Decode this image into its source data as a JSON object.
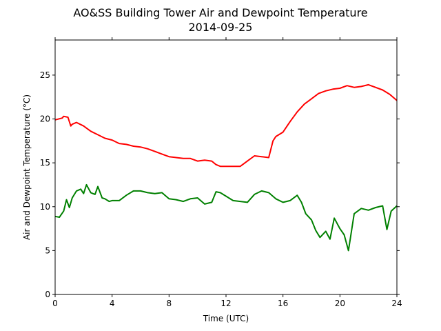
{
  "chart_data": {
    "type": "line",
    "title": "AO&SS Building Tower Air and Dewpoint Temperature",
    "subtitle": "2014-09-25",
    "xlabel": "Time (UTC)",
    "ylabel": "Air and Dewpoint Temperature (°C)",
    "xlim": [
      0,
      24
    ],
    "ylim": [
      0,
      29
    ],
    "xticks": [
      0,
      4,
      8,
      12,
      16,
      20,
      24
    ],
    "yticks": [
      0,
      5,
      10,
      15,
      20,
      25
    ],
    "grid": false,
    "legend": "none",
    "series": [
      {
        "color": "#ff0000",
        "x": [
          0,
          0.5,
          0.6,
          0.9,
          1.1,
          1.2,
          1.5,
          2.0,
          2.5,
          3.0,
          3.5,
          4.0,
          4.5,
          5.0,
          5.5,
          6.0,
          6.5,
          7.0,
          7.5,
          8.0,
          8.5,
          9.0,
          9.5,
          10.0,
          10.5,
          11.0,
          11.3,
          11.6,
          12.0,
          12.5,
          13.0,
          13.5,
          14.0,
          14.5,
          15.0,
          15.3,
          15.5,
          16.0,
          16.5,
          17.0,
          17.5,
          18.0,
          18.5,
          19.0,
          19.5,
          20.0,
          20.5,
          21.0,
          21.5,
          22.0,
          22.5,
          23.0,
          23.5,
          24.0
        ],
        "y": [
          19.9,
          20.1,
          20.3,
          20.2,
          19.2,
          19.4,
          19.6,
          19.2,
          18.6,
          18.2,
          17.8,
          17.6,
          17.2,
          17.1,
          16.9,
          16.8,
          16.6,
          16.3,
          16.0,
          15.7,
          15.6,
          15.5,
          15.5,
          15.2,
          15.3,
          15.2,
          14.8,
          14.6,
          14.6,
          14.6,
          14.6,
          15.2,
          15.8,
          15.7,
          15.6,
          17.5,
          18.0,
          18.5,
          19.7,
          20.8,
          21.7,
          22.3,
          22.9,
          23.2,
          23.4,
          23.5,
          23.8,
          23.6,
          23.7,
          23.9,
          23.6,
          23.3,
          22.8,
          22.1
        ]
      },
      {
        "color": "#008000",
        "x": [
          0,
          0.3,
          0.6,
          0.8,
          1.0,
          1.2,
          1.5,
          1.8,
          2.0,
          2.2,
          2.5,
          2.8,
          3.0,
          3.3,
          3.5,
          3.8,
          4.0,
          4.5,
          5.0,
          5.5,
          6.0,
          6.5,
          7.0,
          7.5,
          8.0,
          8.5,
          9.0,
          9.5,
          10.0,
          10.5,
          11.0,
          11.3,
          11.6,
          12.0,
          12.5,
          13.0,
          13.5,
          14.0,
          14.5,
          15.0,
          15.5,
          16.0,
          16.5,
          17.0,
          17.3,
          17.6,
          18.0,
          18.3,
          18.6,
          19.0,
          19.3,
          19.6,
          20.0,
          20.3,
          20.6,
          21.0,
          21.5,
          22.0,
          22.5,
          23.0,
          23.3,
          23.6,
          24.0
        ],
        "y": [
          8.9,
          8.8,
          9.5,
          10.8,
          9.9,
          11.0,
          11.8,
          12.0,
          11.5,
          12.5,
          11.6,
          11.4,
          12.3,
          11.0,
          10.9,
          10.6,
          10.7,
          10.7,
          11.3,
          11.8,
          11.8,
          11.6,
          11.5,
          11.6,
          10.9,
          10.8,
          10.6,
          10.9,
          11.0,
          10.3,
          10.5,
          11.7,
          11.6,
          11.2,
          10.7,
          10.6,
          10.5,
          11.4,
          11.8,
          11.6,
          10.9,
          10.5,
          10.7,
          11.3,
          10.5,
          9.2,
          8.5,
          7.3,
          6.5,
          7.2,
          6.3,
          8.7,
          7.5,
          6.8,
          5.0,
          9.2,
          9.8,
          9.6,
          9.9,
          10.1,
          7.4,
          9.5,
          10.1
        ]
      }
    ]
  }
}
